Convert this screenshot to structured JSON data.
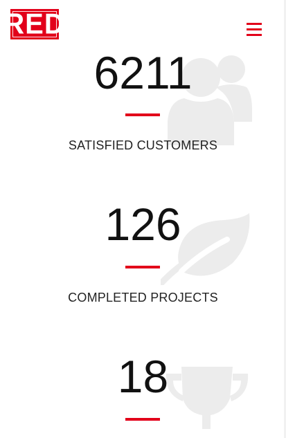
{
  "header": {
    "logo_text": "RED",
    "menu_icon": "hamburger-menu-icon"
  },
  "colors": {
    "accent": "#e2001a",
    "icon_gray": "#ececec",
    "text": "#111111"
  },
  "counters": [
    {
      "value": "6211",
      "label": "SATISFIED CUSTOMERS",
      "icon": "users-icon"
    },
    {
      "value": "126",
      "label": "COMPLETED PROJECTS",
      "icon": "leaf-icon"
    },
    {
      "value": "18",
      "label": "",
      "icon": "trophy-icon"
    }
  ]
}
